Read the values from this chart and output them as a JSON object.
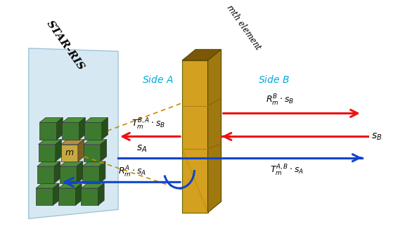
{
  "bg_color": "#ffffff",
  "ris_panel_color": "#cce4f0",
  "ris_panel_edge": "#90b8d0",
  "elem_face": "#3d7a30",
  "elem_dark": "#255018",
  "elem_top": "#4a9038",
  "elem_right": "#2a6020",
  "hi_face": "#c8a840",
  "hi_dark": "#7a6020",
  "hi_top": "#b09040",
  "panel_front": "#d4a020",
  "panel_right": "#a07810",
  "panel_top": "#7a5808",
  "panel_subdiv": "#b08010",
  "arrow_red": "#ee1111",
  "arrow_blue": "#1144cc",
  "text_cyan": "#00aadd",
  "dash_color": "#cc8800",
  "star_ris": "STAR-RIS",
  "side_a": "Side A",
  "side_b": "Side B",
  "mth": "mth element"
}
